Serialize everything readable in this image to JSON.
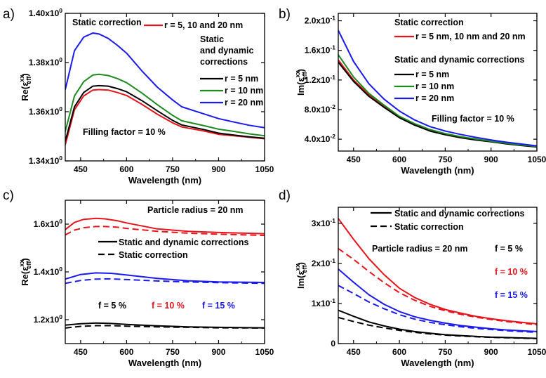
{
  "chart_data": [
    {
      "panel_label": "a)",
      "type": "line",
      "xlabel": "Wavelength (nm)",
      "ylabel": "Re(ε_eff^xx)",
      "ylabel_main": "Re(ε",
      "ylabel_sup": "xx",
      "ylabel_sub": "eff",
      "ylabel_end": ")",
      "xlim": [
        400,
        1050
      ],
      "ylim": [
        1.34,
        1.4
      ],
      "xticks": [
        450,
        600,
        750,
        900,
        1050
      ],
      "xtick_labels": [
        "450",
        "600",
        "750",
        "900",
        "1050"
      ],
      "yticks": [
        1.34,
        1.36,
        1.38,
        1.4
      ],
      "ytick_labels": [
        {
          "base": "1.34x10",
          "exp": "0"
        },
        {
          "base": "1.36x10",
          "exp": "0"
        },
        {
          "base": "1.38x10",
          "exp": "0"
        },
        {
          "base": "1.40x10",
          "exp": "0"
        }
      ],
      "grid": false,
      "series": [
        {
          "name": "r = 5, 10 and 20 nm",
          "color": "#e8141c",
          "dash": "solid",
          "x": [
            400,
            430,
            460,
            490,
            510,
            540,
            570,
            600,
            650,
            700,
            750,
            780,
            850,
            900,
            950,
            1000,
            1050
          ],
          "y": [
            1.3465,
            1.3608,
            1.3664,
            1.3688,
            1.369,
            1.3688,
            1.3678,
            1.3666,
            1.363,
            1.359,
            1.3555,
            1.3538,
            1.3522,
            1.3508,
            1.3502,
            1.3496,
            1.349
          ]
        },
        {
          "name": "r = 5 nm",
          "color": "#000000",
          "dash": "solid",
          "x": [
            400,
            430,
            460,
            490,
            510,
            540,
            570,
            600,
            650,
            700,
            750,
            780,
            850,
            900,
            950,
            1000,
            1050
          ],
          "y": [
            1.348,
            1.362,
            1.3678,
            1.3704,
            1.3706,
            1.3704,
            1.3694,
            1.3681,
            1.3645,
            1.3604,
            1.3565,
            1.3546,
            1.3528,
            1.3513,
            1.3505,
            1.3498,
            1.3492
          ]
        },
        {
          "name": "r = 10 nm",
          "color": "#1f8a1f",
          "dash": "solid",
          "x": [
            400,
            430,
            460,
            490,
            510,
            540,
            570,
            600,
            650,
            700,
            750,
            780,
            850,
            900,
            950,
            1000,
            1050
          ],
          "y": [
            1.352,
            1.3664,
            1.3722,
            1.3749,
            1.3752,
            1.3747,
            1.3735,
            1.3718,
            1.3676,
            1.3629,
            1.3585,
            1.3563,
            1.3544,
            1.3529,
            1.352,
            1.351,
            1.3502
          ]
        },
        {
          "name": "r = 20 nm",
          "color": "#1a1aee",
          "dash": "solid",
          "x": [
            400,
            430,
            460,
            490,
            510,
            540,
            570,
            600,
            650,
            700,
            750,
            780,
            850,
            900,
            950,
            1000,
            1050
          ],
          "y": [
            1.369,
            1.3848,
            1.3903,
            1.392,
            1.3916,
            1.3898,
            1.387,
            1.3838,
            1.3766,
            1.37,
            1.3648,
            1.362,
            1.3592,
            1.3572,
            1.3558,
            1.3545,
            1.3535
          ]
        }
      ],
      "annotations": [
        {
          "text": "Static correction",
          "color": "#000000"
        },
        {
          "text": "Static",
          "color": "#000000"
        },
        {
          "text": "and dynamic",
          "color": "#000000"
        },
        {
          "text": "corrections",
          "color": "#000000"
        },
        {
          "text": "Filling factor = 10 %",
          "color": "#000000"
        }
      ]
    },
    {
      "panel_label": "b)",
      "type": "line",
      "xlabel": "Wavelength (nm)",
      "ylabel": "Im(ε_eff^xx)",
      "ylabel_main": "Im(ε",
      "ylabel_sup": "xx",
      "ylabel_sub": "eff",
      "ylabel_end": ")",
      "xlim": [
        400,
        1050
      ],
      "ylim": [
        0.024,
        0.21
      ],
      "xticks": [
        450,
        600,
        750,
        900,
        1050
      ],
      "xtick_labels": [
        "450",
        "600",
        "750",
        "900",
        "1050"
      ],
      "yticks": [
        0.04,
        0.08,
        0.12,
        0.16,
        0.2
      ],
      "ytick_labels": [
        {
          "base": "4.0x10",
          "exp": "-2"
        },
        {
          "base": "8.0x10",
          "exp": "-2"
        },
        {
          "base": "1.2x10",
          "exp": "-1"
        },
        {
          "base": "1.6x10",
          "exp": "-1"
        },
        {
          "base": "2.0x10",
          "exp": "-1"
        }
      ],
      "grid": false,
      "series": [
        {
          "name": "r = 5 nm, 10 nm and 20 nm",
          "color": "#e8141c",
          "dash": "solid",
          "x": [
            400,
            450,
            500,
            550,
            600,
            650,
            700,
            750,
            800,
            850,
            900,
            950,
            1000,
            1050
          ],
          "y": [
            0.147,
            0.12,
            0.1,
            0.084,
            0.07,
            0.06,
            0.052,
            0.047,
            0.043,
            0.04,
            0.037,
            0.034,
            0.032,
            0.03
          ]
        },
        {
          "name": "r = 5 nm",
          "color": "#000000",
          "dash": "solid",
          "x": [
            400,
            450,
            500,
            550,
            600,
            650,
            700,
            750,
            800,
            850,
            900,
            950,
            1000,
            1050
          ],
          "y": [
            0.144,
            0.118,
            0.098,
            0.083,
            0.069,
            0.059,
            0.051,
            0.046,
            0.042,
            0.039,
            0.0365,
            0.0338,
            0.0315,
            0.0295
          ]
        },
        {
          "name": "r = 10 nm",
          "color": "#1f8a1f",
          "dash": "solid",
          "x": [
            400,
            450,
            500,
            550,
            600,
            650,
            700,
            750,
            800,
            850,
            900,
            950,
            1000,
            1050
          ],
          "y": [
            0.154,
            0.124,
            0.102,
            0.086,
            0.071,
            0.061,
            0.053,
            0.0475,
            0.0435,
            0.0402,
            0.0373,
            0.0345,
            0.0322,
            0.0302
          ]
        },
        {
          "name": "r = 20 nm",
          "color": "#1a1aee",
          "dash": "solid",
          "x": [
            400,
            450,
            500,
            550,
            600,
            650,
            700,
            750,
            800,
            850,
            900,
            950,
            1000,
            1050
          ],
          "y": [
            0.187,
            0.145,
            0.115,
            0.094,
            0.078,
            0.066,
            0.057,
            0.051,
            0.0465,
            0.0425,
            0.039,
            0.036,
            0.0335,
            0.031
          ]
        }
      ],
      "annotations": [
        {
          "text": "Static correction",
          "color": "#000000"
        },
        {
          "text": "Static and dynamic corrections",
          "color": "#000000"
        },
        {
          "text": "Filling factor = 10 %",
          "color": "#000000"
        }
      ]
    },
    {
      "panel_label": "c)",
      "type": "line",
      "xlabel": "Wavelength (nm)",
      "ylabel": "Re(ε_eff^xx)",
      "ylabel_main": "Re(ε",
      "ylabel_sup": "xx",
      "ylabel_sub": "eff",
      "ylabel_end": ")",
      "xlim": [
        400,
        1050
      ],
      "ylim": [
        1.1,
        1.7
      ],
      "xticks": [
        450,
        600,
        750,
        900,
        1050
      ],
      "xtick_labels": [
        "450",
        "600",
        "750",
        "900",
        "1050"
      ],
      "yticks": [
        1.2,
        1.4,
        1.6
      ],
      "ytick_labels": [
        {
          "base": "1.2x10",
          "exp": "0"
        },
        {
          "base": "1.4x10",
          "exp": "0"
        },
        {
          "base": "1.6x10",
          "exp": "0"
        }
      ],
      "grid": false,
      "series": [
        {
          "name": "f = 5 % (static and dynamic)",
          "color": "#000000",
          "dash": "solid",
          "x": [
            400,
            450,
            500,
            550,
            600,
            700,
            800,
            900,
            1050
          ],
          "y": [
            1.177,
            1.183,
            1.186,
            1.184,
            1.18,
            1.174,
            1.17,
            1.168,
            1.166
          ]
        },
        {
          "name": "f = 5 % (static)",
          "color": "#000000",
          "dash": "dashed",
          "x": [
            400,
            450,
            500,
            550,
            600,
            700,
            800,
            900,
            1050
          ],
          "y": [
            1.165,
            1.172,
            1.175,
            1.175,
            1.173,
            1.17,
            1.168,
            1.166,
            1.165
          ]
        },
        {
          "name": "f = 10 % (static and dynamic)",
          "color": "#e8141c",
          "dash": "solid",
          "x": [
            400,
            430,
            460,
            500,
            530,
            570,
            600,
            700,
            800,
            900,
            1050
          ],
          "y": [
            1.577,
            1.607,
            1.62,
            1.624,
            1.622,
            1.614,
            1.605,
            1.58,
            1.57,
            1.565,
            1.56
          ]
        },
        {
          "name": "f = 10 % (static)",
          "color": "#e8141c",
          "dash": "dashed",
          "x": [
            400,
            430,
            460,
            500,
            530,
            570,
            600,
            700,
            800,
            900,
            1050
          ],
          "y": [
            1.555,
            1.575,
            1.585,
            1.59,
            1.59,
            1.587,
            1.582,
            1.57,
            1.562,
            1.558,
            1.553
          ]
        },
        {
          "name": "f = 15 % (static and dynamic)",
          "color": "#1a1aee",
          "dash": "solid",
          "x": [
            400,
            450,
            500,
            550,
            600,
            700,
            800,
            900,
            1050
          ],
          "y": [
            1.37,
            1.389,
            1.396,
            1.394,
            1.387,
            1.373,
            1.363,
            1.358,
            1.356
          ]
        },
        {
          "name": "f = 15 % (static)",
          "color": "#1a1aee",
          "dash": "dashed",
          "x": [
            400,
            450,
            500,
            550,
            600,
            700,
            800,
            900,
            1050
          ],
          "y": [
            1.352,
            1.364,
            1.37,
            1.371,
            1.368,
            1.362,
            1.358,
            1.355,
            1.352
          ]
        }
      ],
      "annotations": [
        {
          "text": "Particle radius = 20 nm",
          "color": "#000000"
        },
        {
          "text": "Static and dynamic corrections",
          "color": "#000000"
        },
        {
          "text": "Static correction",
          "color": "#000000"
        },
        {
          "text": "f = 5 %",
          "color": "#000000"
        },
        {
          "text": "f = 10 %",
          "color": "#e8141c"
        },
        {
          "text": "f = 15 %",
          "color": "#1a1aee"
        }
      ]
    },
    {
      "panel_label": "d)",
      "type": "line",
      "xlabel": "Wavelength (nm)",
      "ylabel": "Im(ε_eff^xx)",
      "ylabel_main": "Im(ε",
      "ylabel_sup": "xx",
      "ylabel_sub": "eff",
      "ylabel_end": ")",
      "xlim": [
        400,
        1050
      ],
      "ylim": [
        0,
        0.34
      ],
      "xticks": [
        450,
        600,
        750,
        900,
        1050
      ],
      "xtick_labels": [
        "450",
        "600",
        "750",
        "900",
        "1050"
      ],
      "yticks": [
        0,
        0.1,
        0.2,
        0.3
      ],
      "ytick_labels": [
        {
          "base": "0",
          "exp": ""
        },
        {
          "base": "1x10",
          "exp": "-1"
        },
        {
          "base": "2x10",
          "exp": "-1"
        },
        {
          "base": "3x10",
          "exp": "-1"
        }
      ],
      "grid": false,
      "series": [
        {
          "name": "f = 5 % (static and dynamic)",
          "color": "#000000",
          "dash": "solid",
          "x": [
            400,
            450,
            500,
            550,
            600,
            650,
            700,
            750,
            800,
            850,
            900,
            950,
            1000,
            1050
          ],
          "y": [
            0.083,
            0.068,
            0.054,
            0.044,
            0.036,
            0.03,
            0.026,
            0.022,
            0.02,
            0.018,
            0.016,
            0.015,
            0.014,
            0.013
          ]
        },
        {
          "name": "f = 5 % (static)",
          "color": "#000000",
          "dash": "dashed",
          "x": [
            400,
            450,
            500,
            550,
            600,
            650,
            700,
            750,
            800,
            850,
            900,
            950,
            1000,
            1050
          ],
          "y": [
            0.065,
            0.055,
            0.046,
            0.039,
            0.033,
            0.028,
            0.024,
            0.021,
            0.019,
            0.017,
            0.0155,
            0.0145,
            0.0135,
            0.0125
          ]
        },
        {
          "name": "f = 10 % (static and dynamic)",
          "color": "#e8141c",
          "dash": "solid",
          "x": [
            400,
            450,
            500,
            550,
            600,
            650,
            700,
            750,
            800,
            850,
            900,
            950,
            1000,
            1050
          ],
          "y": [
            0.312,
            0.26,
            0.212,
            0.172,
            0.138,
            0.115,
            0.098,
            0.085,
            0.076,
            0.068,
            0.062,
            0.057,
            0.053,
            0.049
          ]
        },
        {
          "name": "f = 10 % (static)",
          "color": "#e8141c",
          "dash": "dashed",
          "x": [
            400,
            450,
            500,
            550,
            600,
            650,
            700,
            750,
            800,
            850,
            900,
            950,
            1000,
            1050
          ],
          "y": [
            0.237,
            0.21,
            0.18,
            0.152,
            0.127,
            0.108,
            0.093,
            0.082,
            0.073,
            0.066,
            0.06,
            0.055,
            0.051,
            0.047
          ]
        },
        {
          "name": "f = 15 % (static and dynamic)",
          "color": "#1a1aee",
          "dash": "solid",
          "x": [
            400,
            450,
            500,
            550,
            600,
            650,
            700,
            750,
            800,
            850,
            900,
            950,
            1000,
            1050
          ],
          "y": [
            0.186,
            0.153,
            0.122,
            0.098,
            0.08,
            0.067,
            0.058,
            0.051,
            0.045,
            0.041,
            0.037,
            0.034,
            0.032,
            0.03
          ]
        },
        {
          "name": "f = 15 % (static)",
          "color": "#1a1aee",
          "dash": "dashed",
          "x": [
            400,
            450,
            500,
            550,
            600,
            650,
            700,
            750,
            800,
            850,
            900,
            950,
            1000,
            1050
          ],
          "y": [
            0.145,
            0.125,
            0.104,
            0.087,
            0.072,
            0.061,
            0.053,
            0.047,
            0.042,
            0.038,
            0.035,
            0.032,
            0.03,
            0.028
          ]
        }
      ],
      "annotations": [
        {
          "text": "Static and dynamic corrections",
          "color": "#000000"
        },
        {
          "text": "Static correction",
          "color": "#000000"
        },
        {
          "text": "Particle radius = 20 nm",
          "color": "#000000"
        },
        {
          "text": "f = 5 %",
          "color": "#000000"
        },
        {
          "text": "f = 10 %",
          "color": "#e8141c"
        },
        {
          "text": "f = 15 %",
          "color": "#1a1aee"
        }
      ]
    }
  ]
}
